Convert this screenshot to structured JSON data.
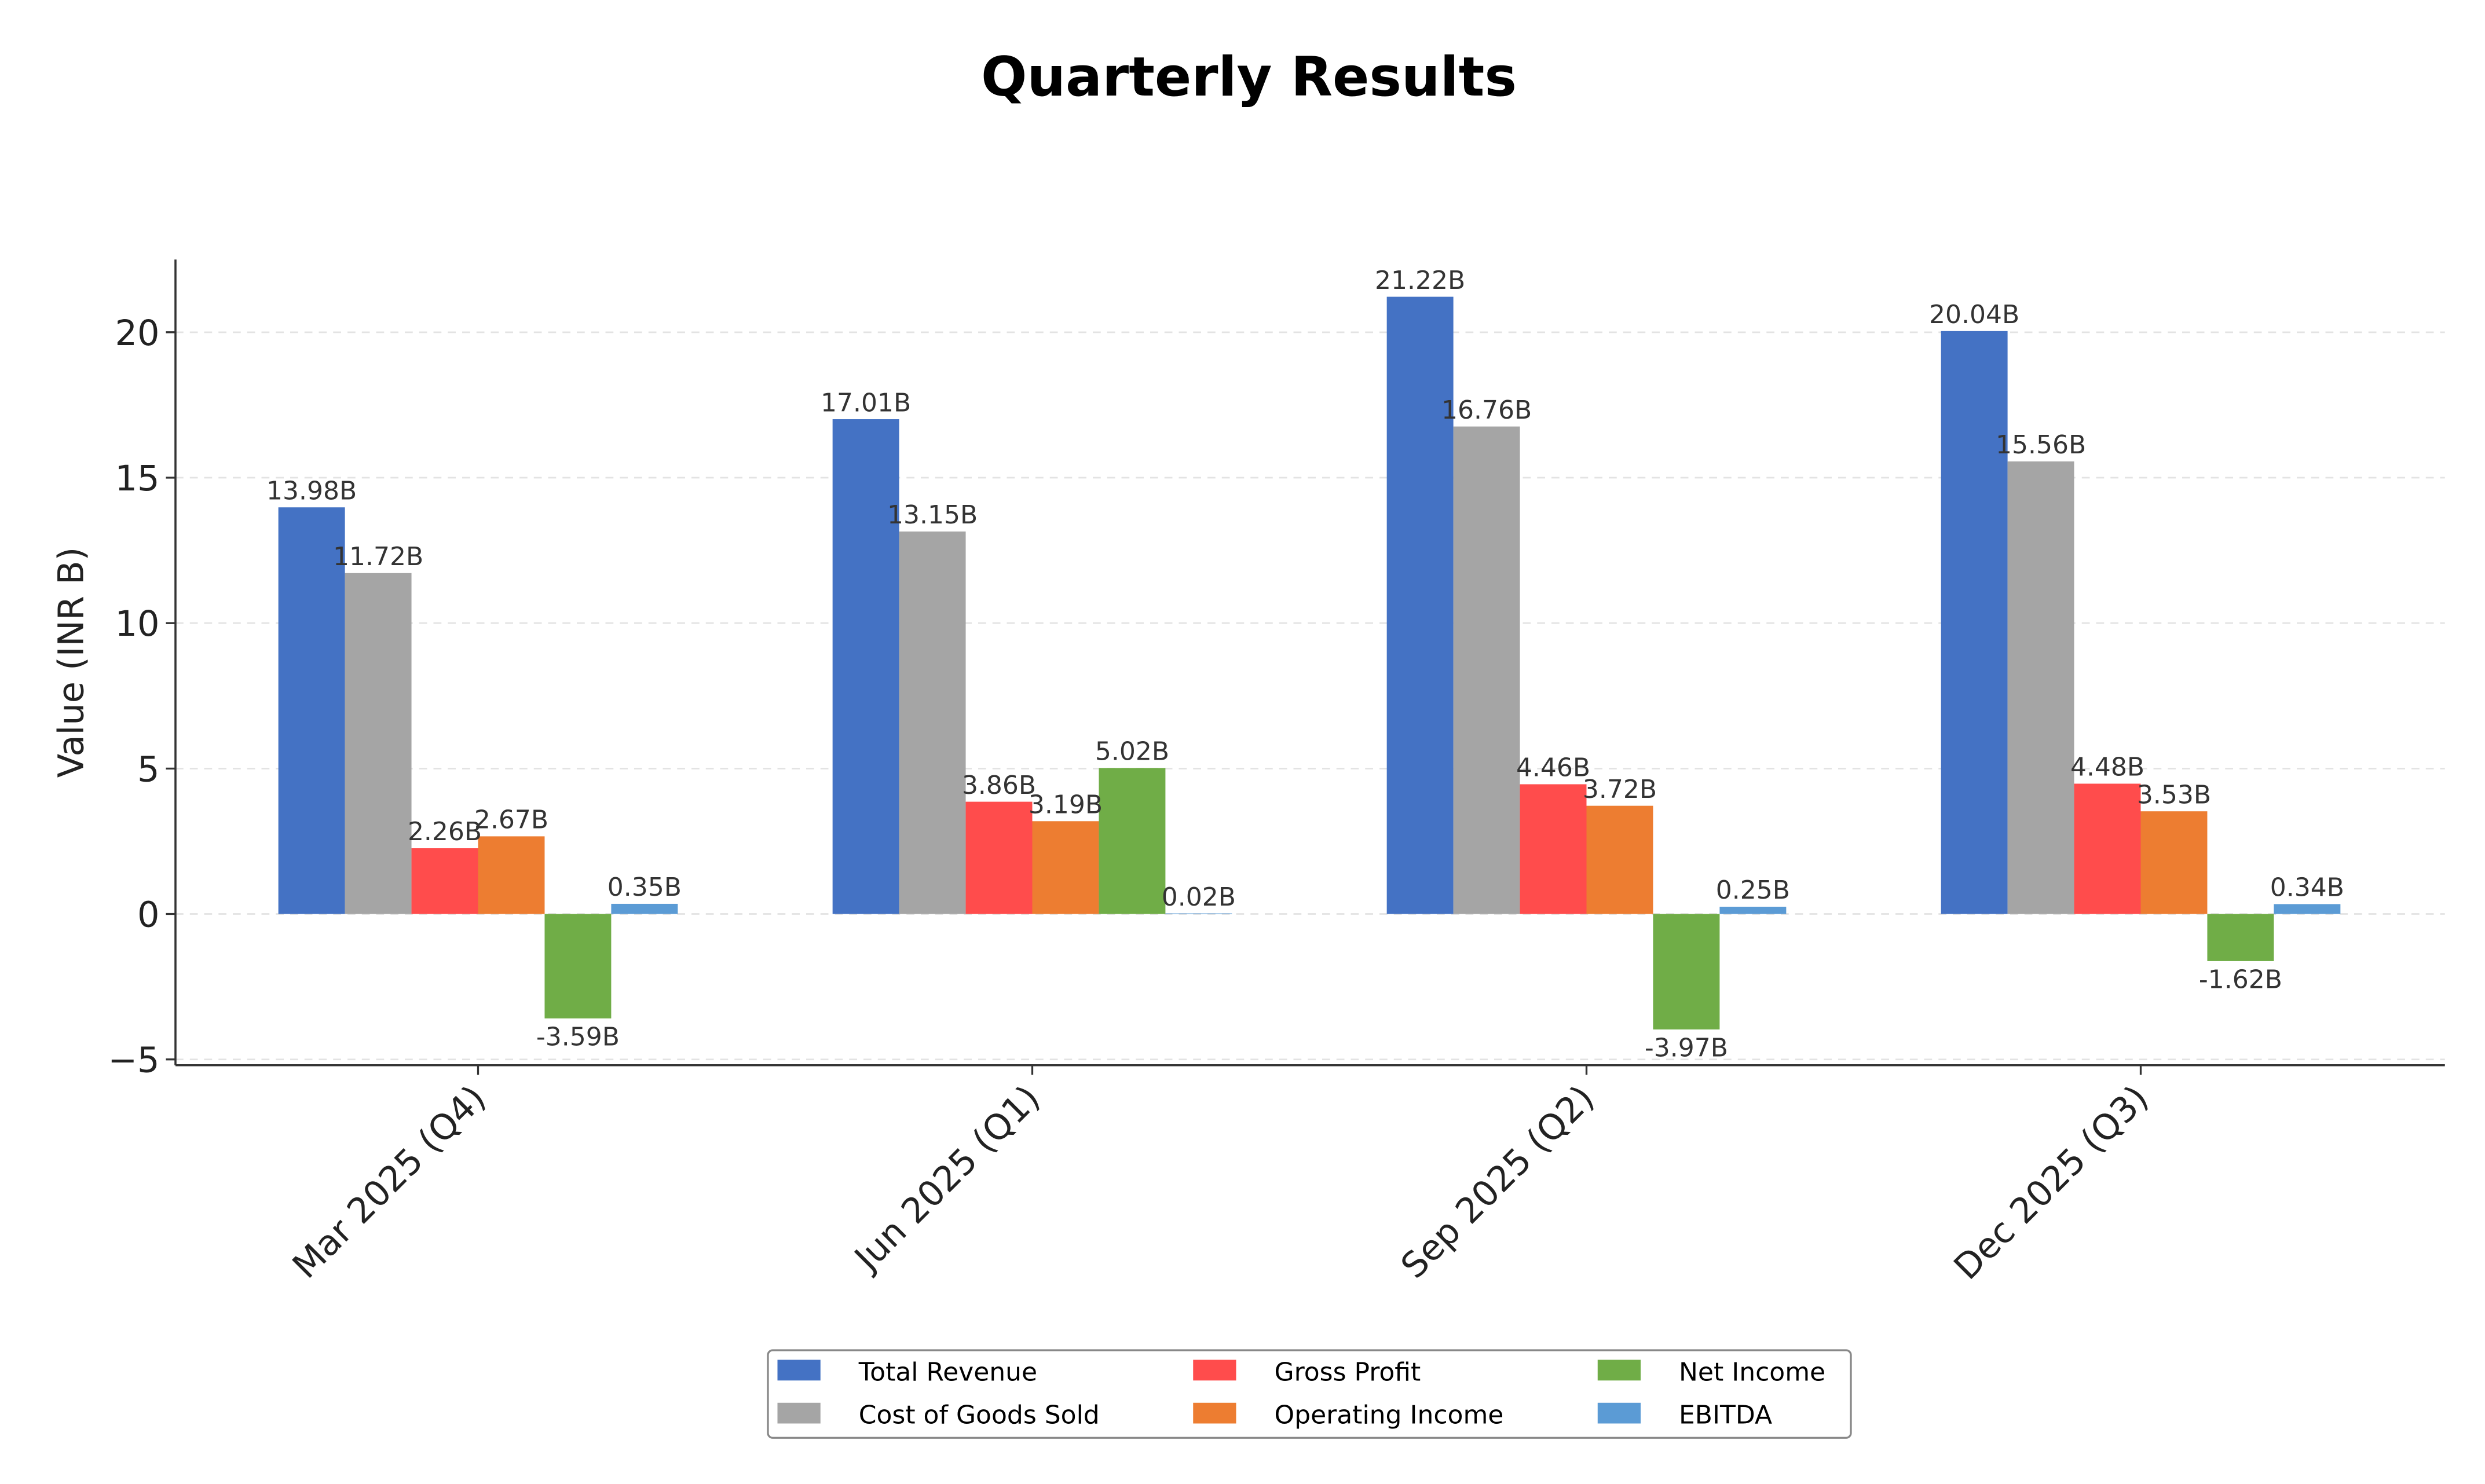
{
  "chart_data": {
    "type": "bar",
    "title": "Quarterly Results",
    "xlabel": "",
    "ylabel": "Value (INR B)",
    "ylim": [
      -5.2,
      22.5
    ],
    "yticks": [
      -5,
      0,
      5,
      10,
      15,
      20
    ],
    "ytick_labels": [
      "−5",
      "0",
      "5",
      "10",
      "15",
      "20"
    ],
    "grid": "y-dashed",
    "legend_placement": "bottom-center",
    "categories": [
      "Mar 2025 (Q4)",
      "Jun 2025 (Q1)",
      "Sep 2025 (Q2)",
      "Dec 2025 (Q3)"
    ],
    "series": [
      {
        "name": "Total Revenue",
        "color": "#4472C4",
        "values": [
          13.98,
          17.01,
          21.22,
          20.04
        ],
        "labels": [
          "13.98B",
          "17.01B",
          "21.22B",
          "20.04B"
        ]
      },
      {
        "name": "Cost of Goods Sold",
        "color": "#A5A5A5",
        "values": [
          11.72,
          13.15,
          16.76,
          15.56
        ],
        "labels": [
          "11.72B",
          "13.15B",
          "16.76B",
          "15.56B"
        ]
      },
      {
        "name": "Gross Profit",
        "color": "#FF4C4C",
        "values": [
          2.26,
          3.86,
          4.46,
          4.48
        ],
        "labels": [
          "2.26B",
          "3.86B",
          "4.46B",
          "4.48B"
        ]
      },
      {
        "name": "Operating Income",
        "color": "#ED7D31",
        "values": [
          2.67,
          3.19,
          3.72,
          3.53
        ],
        "labels": [
          "2.67B",
          "3.19B",
          "3.72B",
          "3.53B"
        ]
      },
      {
        "name": "Net Income",
        "color": "#70AD47",
        "values": [
          -3.59,
          5.02,
          -3.97,
          -1.62
        ],
        "labels": [
          "-3.59B",
          "5.02B",
          "-3.97B",
          "-1.62B"
        ]
      },
      {
        "name": "EBITDA",
        "color": "#5B9BD5",
        "values": [
          0.35,
          0.02,
          0.25,
          0.34
        ],
        "labels": [
          "0.35B",
          "0.02B",
          "0.25B",
          "0.34B"
        ]
      }
    ]
  }
}
